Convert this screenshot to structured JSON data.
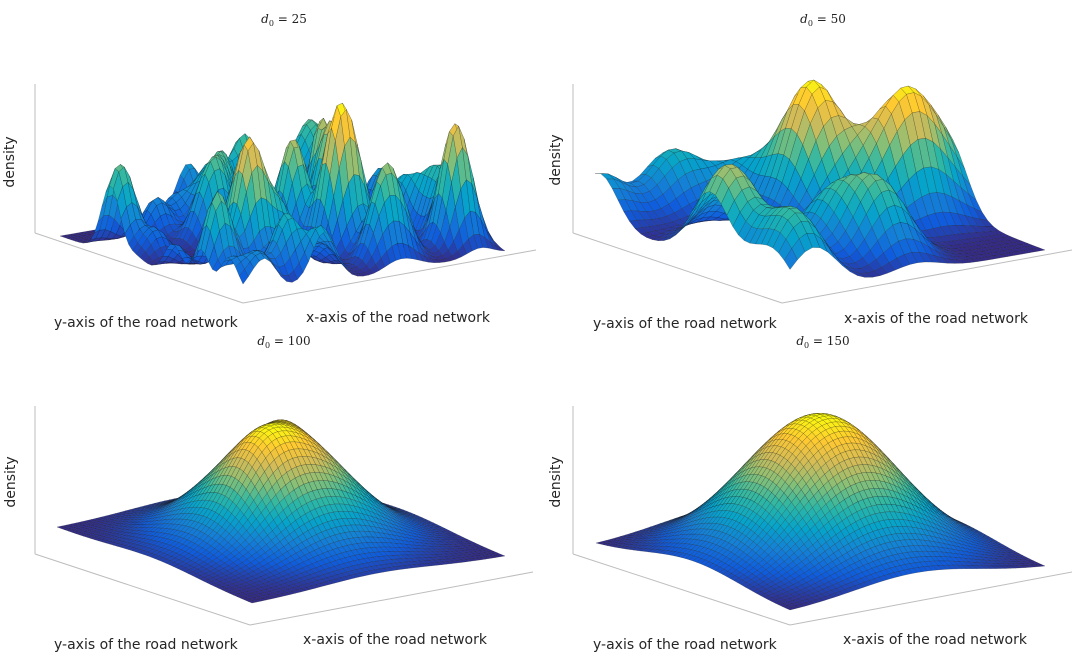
{
  "figure": {
    "colormap": [
      "#352a87",
      "#0f5cdd",
      "#1481d6",
      "#06a4ca",
      "#2eb7a4",
      "#87bf77",
      "#d1bb59",
      "#fec832",
      "#f9fb0e"
    ]
  },
  "chart_data": [
    {
      "type": "surface",
      "title_var": "d",
      "title_sub": "0",
      "title_rest": " = 25",
      "d0": 25,
      "xlabel": "x-axis of the road network",
      "ylabel": "y-axis of the road network",
      "zlabel": "density",
      "grid": false,
      "ticks": false,
      "shape": "many narrow peaks and troughs (high-frequency density)"
    },
    {
      "type": "surface",
      "title_var": "d",
      "title_sub": "0",
      "title_rest": " = 50",
      "d0": 50,
      "xlabel": "x-axis of the road network",
      "ylabel": "y-axis of the road network",
      "zlabel": "density",
      "grid": false,
      "ticks": false,
      "shape": "several medium hills"
    },
    {
      "type": "surface",
      "title_var": "d",
      "title_sub": "0",
      "title_rest": " = 100",
      "d0": 100,
      "xlabel": "x-axis of the road network",
      "ylabel": "y-axis of the road network",
      "zlabel": "density",
      "grid": false,
      "ticks": false,
      "shape": "broad dome with two bumps on top"
    },
    {
      "type": "surface",
      "title_var": "d",
      "title_sub": "0",
      "title_rest": " = 150",
      "d0": 150,
      "xlabel": "x-axis of the road network",
      "ylabel": "y-axis of the road network",
      "zlabel": "density",
      "grid": false,
      "ticks": false,
      "shape": "single smooth dome"
    }
  ]
}
